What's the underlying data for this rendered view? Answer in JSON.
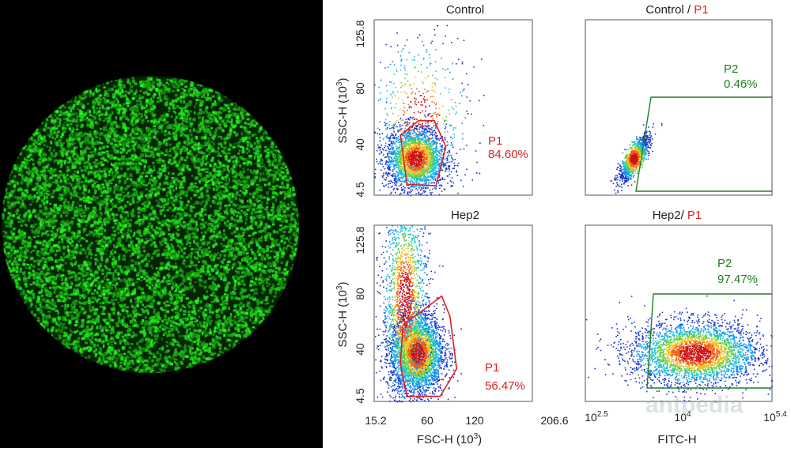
{
  "image_panel": {
    "description_icon": "green-fluorescence-micrograph",
    "background": "#000000",
    "fluor_color": "#22cc22"
  },
  "chart_data": [
    {
      "type": "scatter",
      "title": "Control",
      "xlabel": "",
      "ylabel_prefix": "SSC-H (10",
      "ylabel_exp": "3",
      "ylabel_suffix": ")",
      "ylim": [
        4.5,
        125.8
      ],
      "yticks": [
        "125.8",
        "80",
        "40",
        "4.5"
      ],
      "density_center": [
        65,
        30
      ],
      "gate": {
        "name": "P1",
        "percent": "84.60%",
        "color": "#e02020",
        "vertices": [
          [
            47,
            46
          ],
          [
            69,
            56
          ],
          [
            88,
            56
          ],
          [
            102,
            38
          ],
          [
            90,
            11
          ],
          [
            55,
            12
          ]
        ]
      }
    },
    {
      "type": "scatter",
      "title_a": "Control / ",
      "title_b": "P1",
      "xscale": "log",
      "density_center": [
        3.3,
        29
      ],
      "gate": {
        "name": "P2",
        "percent": "0.46%",
        "color": "#208020"
      }
    },
    {
      "type": "scatter",
      "title": "Hep2",
      "xlabel_prefix": "FSC-H  (10",
      "xlabel_exp": "3",
      "xlabel_suffix": ")",
      "ylabel_prefix": "SSC-H (10",
      "ylabel_exp": "3",
      "ylabel_suffix": ")",
      "xlim": [
        15.2,
        206.6
      ],
      "ylim": [
        4.5,
        125.8
      ],
      "xticks": [
        "15.2",
        "60",
        "120",
        "206.6"
      ],
      "yticks": [
        "125.8",
        "80",
        "40",
        "4.5"
      ],
      "density_center": [
        67,
        38
      ],
      "gate": {
        "name": "P1",
        "percent": "56.47%",
        "color": "#e02020",
        "vertices": [
          [
            50,
            57
          ],
          [
            97,
            77
          ],
          [
            107,
            63
          ],
          [
            115,
            27
          ],
          [
            95,
            8
          ],
          [
            55,
            8
          ],
          [
            47,
            30
          ]
        ]
      }
    },
    {
      "type": "scatter",
      "title_a": "Hep2/ ",
      "title_b": "P1",
      "xlabel": "FITC-H",
      "xscale": "log",
      "xlim": [
        2.5,
        5.4
      ],
      "xticks_base": "10",
      "xticks_exp": [
        "2.5",
        "4",
        "5.4"
      ],
      "density_center": [
        4.3,
        36
      ],
      "gate": {
        "name": "P2",
        "percent": "97.47%",
        "color": "#208020"
      }
    }
  ],
  "watermark": "antpedia"
}
